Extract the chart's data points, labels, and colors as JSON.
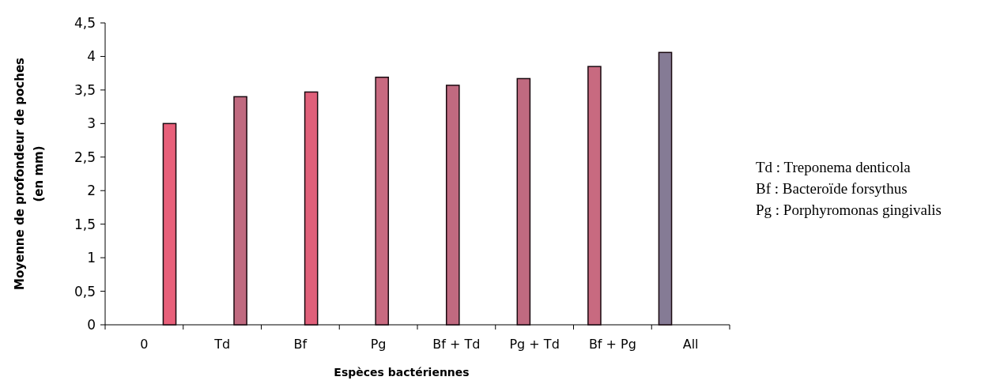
{
  "chart_data": {
    "type": "bar",
    "xlabel": "Espèces bactériennes",
    "ylabel": "Moyenne de profondeur de poches (en mm)",
    "categories": [
      "0",
      "Td",
      "Bf",
      "Pg",
      "Bf + Td",
      "Pg + Td",
      "Bf + Pg",
      "All"
    ],
    "values": [
      3.0,
      3.4,
      3.47,
      3.69,
      3.57,
      3.67,
      3.85,
      4.06
    ],
    "colors": [
      "#e8607a",
      "#c06a80",
      "#e0607a",
      "#c86a80",
      "#c06a80",
      "#c06a80",
      "#c86a80",
      "#857b95"
    ],
    "ylim": [
      0,
      4.5
    ],
    "yticks": [
      {
        "value": 0,
        "label": "0"
      },
      {
        "value": 0.5,
        "label": "0,5"
      },
      {
        "value": 1,
        "label": "1"
      },
      {
        "value": 1.5,
        "label": "1,5"
      },
      {
        "value": 2,
        "label": "2"
      },
      {
        "value": 2.5,
        "label": "2,5"
      },
      {
        "value": 3,
        "label": "3"
      },
      {
        "value": 3.5,
        "label": "3,5"
      },
      {
        "value": 4,
        "label": "4"
      },
      {
        "value": 4.5,
        "label": "4,5"
      }
    ],
    "annotations": [
      "Td : Treponema denticola",
      "Bf : Bacteroïde forsythus",
      "Pg : Porphyromonas gingivalis"
    ]
  }
}
